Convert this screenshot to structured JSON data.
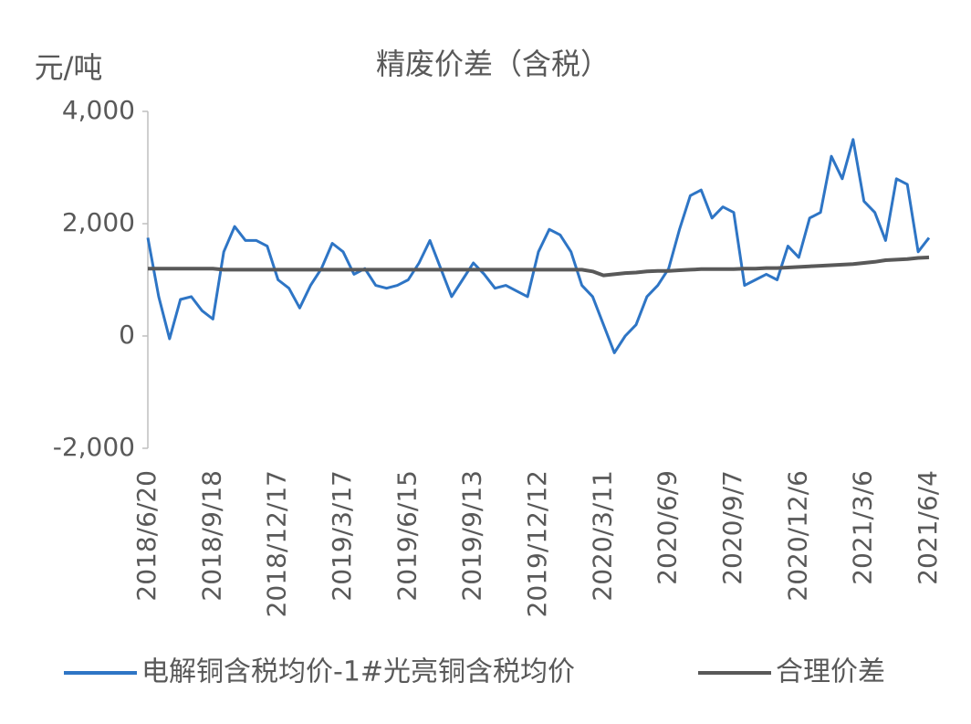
{
  "chart_data": {
    "type": "line",
    "title": "精废价差（含税）",
    "y_label": "元/吨",
    "categories": [
      "2018/6/20",
      null,
      null,
      null,
      null,
      null,
      "2018/9/18",
      null,
      null,
      null,
      null,
      null,
      "2018/12/17",
      null,
      null,
      null,
      null,
      null,
      "2019/3/17",
      null,
      null,
      null,
      null,
      null,
      "2019/6/15",
      null,
      null,
      null,
      null,
      null,
      "2019/9/13",
      null,
      null,
      null,
      null,
      null,
      "2019/12/12",
      null,
      null,
      null,
      null,
      null,
      "2020/3/11",
      null,
      null,
      null,
      null,
      null,
      "2020/6/9",
      null,
      null,
      null,
      null,
      null,
      "2020/9/7",
      null,
      null,
      null,
      null,
      null,
      "2020/12/6",
      null,
      null,
      null,
      null,
      null,
      "2021/3/6",
      null,
      null,
      null,
      null,
      null,
      "2021/6/4"
    ],
    "series": [
      {
        "name": "电解铜含税均价-1#光亮铜含税均价",
        "color": "#2e75c5",
        "values": [
          1750,
          700,
          -50,
          650,
          700,
          450,
          300,
          1500,
          1950,
          1700,
          1700,
          1600,
          1000,
          850,
          500,
          900,
          1200,
          1650,
          1500,
          1100,
          1200,
          900,
          850,
          900,
          1000,
          1300,
          1700,
          1200,
          700,
          1000,
          1300,
          1100,
          850,
          900,
          800,
          700,
          1500,
          1900,
          1800,
          1500,
          900,
          700,
          200,
          -300,
          0,
          200,
          700,
          900,
          1200,
          1900,
          2500,
          2600,
          2100,
          2300,
          2200,
          900,
          1000,
          1100,
          1000,
          1600,
          1400,
          2100,
          2200,
          3200,
          2800,
          3500,
          2400,
          2200,
          1700,
          2800,
          2700,
          1500,
          1750
        ]
      },
      {
        "name": "合理价差",
        "color": "#595959",
        "values": [
          1200,
          1200,
          1200,
          1200,
          1200,
          1200,
          1200,
          1180,
          1180,
          1180,
          1180,
          1180,
          1180,
          1180,
          1180,
          1180,
          1180,
          1180,
          1180,
          1180,
          1180,
          1180,
          1180,
          1180,
          1180,
          1180,
          1180,
          1180,
          1180,
          1180,
          1180,
          1180,
          1180,
          1180,
          1180,
          1180,
          1180,
          1180,
          1180,
          1180,
          1180,
          1150,
          1080,
          1100,
          1120,
          1130,
          1150,
          1160,
          1160,
          1170,
          1180,
          1190,
          1190,
          1190,
          1190,
          1200,
          1200,
          1210,
          1210,
          1220,
          1230,
          1240,
          1250,
          1260,
          1270,
          1280,
          1300,
          1320,
          1350,
          1360,
          1370,
          1390,
          1400
        ]
      }
    ],
    "ylim": [
      -2000,
      4000
    ],
    "yticks": [
      {
        "value": -2000,
        "label": "-2,000"
      },
      0,
      {
        "value": 2000,
        "label": "2,000"
      },
      {
        "value": 4000,
        "label": "4,000"
      }
    ]
  }
}
